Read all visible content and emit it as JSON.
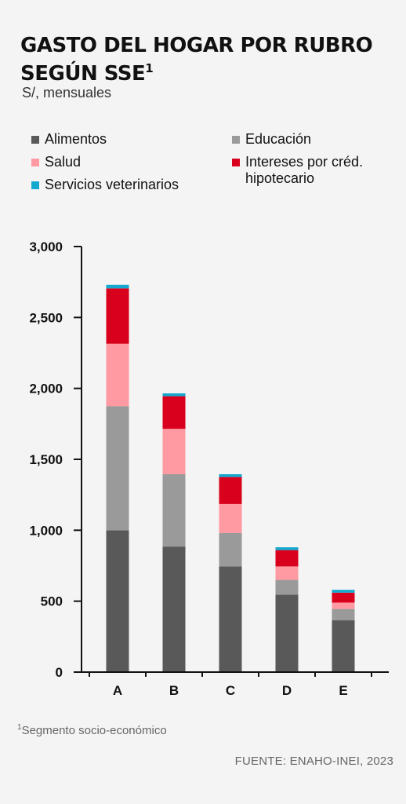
{
  "header": {
    "title_line1": "GASTO DEL HOGAR POR RUBRO",
    "title_line2": "SEGÚN SSE",
    "title_sup": "1",
    "subtitle": "S/, mensuales"
  },
  "legend": [
    {
      "label": "Alimentos",
      "color": "#595959"
    },
    {
      "label": "Educación",
      "color": "#9a9a9a"
    },
    {
      "label": "Salud",
      "color": "#ff9aa2"
    },
    {
      "label": "Intereses por créd.\nhipotecario",
      "color": "#d8001c"
    },
    {
      "label": "Servicios veterinarios",
      "color": "#13a8cf"
    }
  ],
  "chart_data": {
    "type": "bar",
    "stacked": true,
    "categories": [
      "A",
      "B",
      "C",
      "D",
      "E"
    ],
    "series": [
      {
        "name": "Alimentos",
        "color": "#595959",
        "values": [
          1000,
          885,
          745,
          545,
          365
        ]
      },
      {
        "name": "Educación",
        "color": "#9a9a9a",
        "values": [
          875,
          510,
          235,
          105,
          80
        ]
      },
      {
        "name": "Salud",
        "color": "#ff9aa2",
        "values": [
          440,
          320,
          205,
          95,
          45
        ]
      },
      {
        "name": "Intereses por créd. hipotecario",
        "color": "#d8001c",
        "values": [
          390,
          230,
          190,
          115,
          70
        ]
      },
      {
        "name": "Servicios veterinarios",
        "color": "#13a8cf",
        "values": [
          25,
          20,
          20,
          20,
          20
        ]
      }
    ],
    "yticks": [
      "0",
      "500",
      "1,000",
      "1,500",
      "2,000",
      "2,500",
      "3,000"
    ],
    "ytick_values": [
      0,
      500,
      1000,
      1500,
      2000,
      2500,
      3000
    ],
    "ylim": [
      0,
      3000
    ],
    "grid": false,
    "legend_position": "top"
  },
  "footnote": {
    "sup": "1",
    "text": "Segmento socio-económico"
  },
  "source": "FUENTE: ENAHO-INEI, 2023"
}
